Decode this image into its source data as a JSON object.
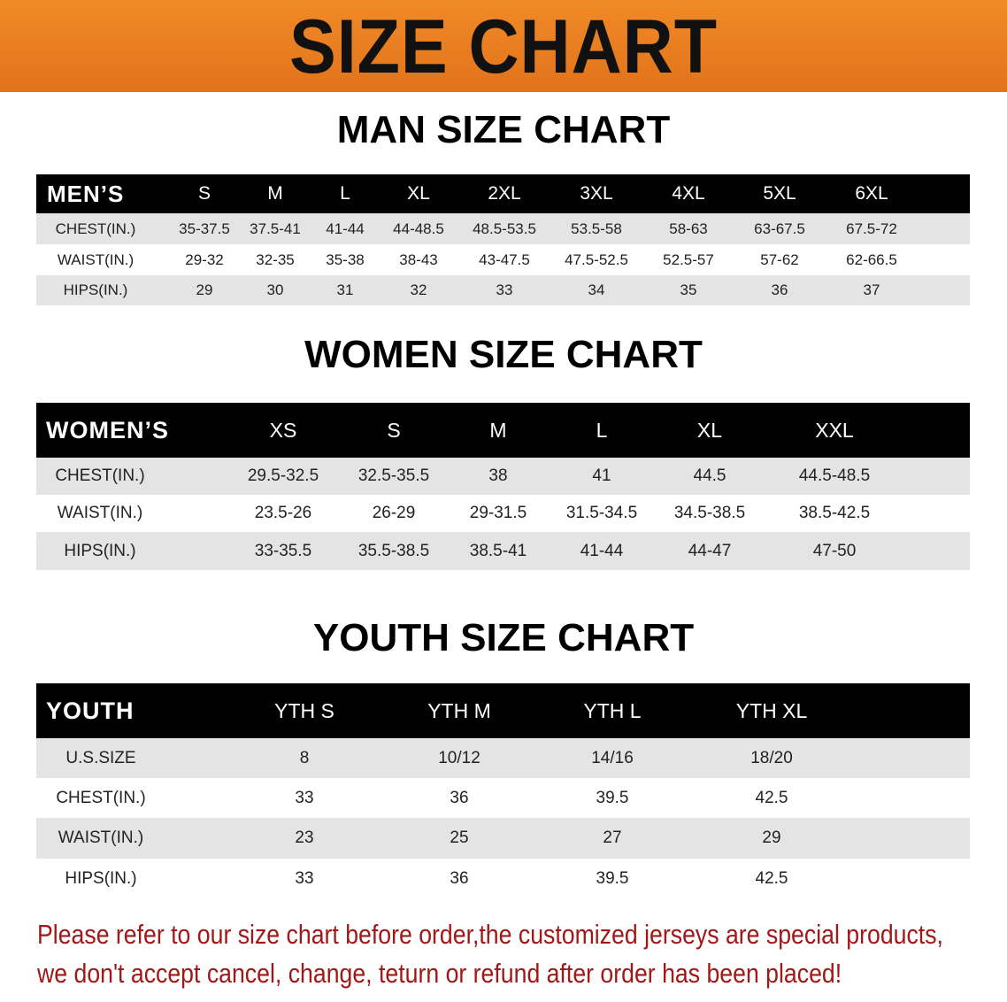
{
  "banner_title": "SIZE CHART",
  "men": {
    "title": "MAN SIZE CHART",
    "header_label": "MEN’S",
    "sizes": [
      "S",
      "M",
      "L",
      "XL",
      "2XL",
      "3XL",
      "4XL",
      "5XL",
      "6XL"
    ],
    "rows": [
      {
        "label": "CHEST(IN.)",
        "values": [
          "35-37.5",
          "37.5-41",
          "41-44",
          "44-48.5",
          "48.5-53.5",
          "53.5-58",
          "58-63",
          "63-67.5",
          "67.5-72"
        ]
      },
      {
        "label": "WAIST(IN.)",
        "values": [
          "29-32",
          "32-35",
          "35-38",
          "38-43",
          "43-47.5",
          "47.5-52.5",
          "52.5-57",
          "57-62",
          "62-66.5"
        ]
      },
      {
        "label": "HIPS(IN.)",
        "values": [
          "29",
          "30",
          "31",
          "32",
          "33",
          "34",
          "35",
          "36",
          "37"
        ]
      }
    ]
  },
  "women": {
    "title": "WOMEN SIZE CHART",
    "header_label": "WOMEN’S",
    "sizes": [
      "XS",
      "S",
      "M",
      "L",
      "XL",
      "XXL"
    ],
    "rows": [
      {
        "label": "CHEST(IN.)",
        "values": [
          "29.5-32.5",
          "32.5-35.5",
          "38",
          "41",
          "44.5",
          "44.5-48.5"
        ]
      },
      {
        "label": "WAIST(IN.)",
        "values": [
          "23.5-26",
          "26-29",
          "29-31.5",
          "31.5-34.5",
          "34.5-38.5",
          "38.5-42.5"
        ]
      },
      {
        "label": "HIPS(IN.)",
        "values": [
          "33-35.5",
          "35.5-38.5",
          "38.5-41",
          "41-44",
          "44-47",
          "47-50"
        ]
      }
    ]
  },
  "youth": {
    "title": "YOUTH SIZE CHART",
    "header_label": "YOUTH",
    "sizes": [
      "YTH S",
      "YTH M",
      "YTH L",
      "YTH XL"
    ],
    "rows": [
      {
        "label": "U.S.SIZE",
        "values": [
          "8",
          "10/12",
          "14/16",
          "18/20"
        ]
      },
      {
        "label": "CHEST(IN.)",
        "values": [
          "33",
          "36",
          "39.5",
          "42.5"
        ]
      },
      {
        "label": "WAIST(IN.)",
        "values": [
          "23",
          "25",
          "27",
          "29"
        ]
      },
      {
        "label": "HIPS(IN.)",
        "values": [
          "33",
          "36",
          "39.5",
          "42.5"
        ]
      }
    ]
  },
  "notice_line1": "Please refer to our size chart before order,the customized jerseys are special products,",
  "notice_line2": "we don't accept cancel, change, teturn or refund after order has been placed!",
  "colors": {
    "banner": "#e87a1e",
    "header_row": "#000000",
    "stripe": "#e4e4e4",
    "notice": "#a01818"
  }
}
